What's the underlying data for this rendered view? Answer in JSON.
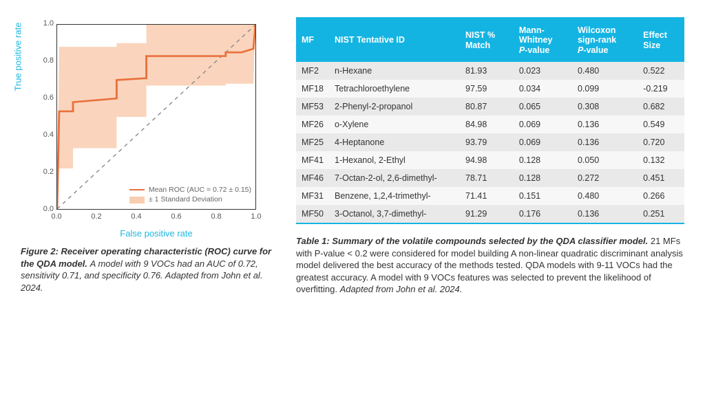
{
  "chart": {
    "type": "line",
    "xlim": [
      0.0,
      1.0
    ],
    "ylim": [
      0.0,
      1.0
    ],
    "xticks": [
      0.0,
      0.2,
      0.4,
      0.6,
      0.8,
      1.0
    ],
    "yticks": [
      0.0,
      0.2,
      0.4,
      0.6,
      0.8,
      1.0
    ],
    "xlabel": "False positive rate",
    "ylabel": "True positive rate",
    "label_color": "#1fb6e0",
    "tick_fontsize": 11,
    "label_fontsize": 13,
    "border_color": "#333333",
    "background_color": "#ffffff",
    "mean_line": {
      "color": "#e8713c",
      "width": 2,
      "points": [
        [
          0.0,
          0.0
        ],
        [
          0.01,
          0.53
        ],
        [
          0.08,
          0.53
        ],
        [
          0.08,
          0.58
        ],
        [
          0.3,
          0.6
        ],
        [
          0.3,
          0.7
        ],
        [
          0.45,
          0.71
        ],
        [
          0.45,
          0.83
        ],
        [
          0.85,
          0.83
        ],
        [
          0.85,
          0.85
        ],
        [
          0.93,
          0.85
        ],
        [
          0.99,
          0.87
        ],
        [
          1.0,
          1.0
        ]
      ]
    },
    "band": {
      "fill": "#f9cdb0",
      "opacity": 0.85,
      "upper": [
        [
          0.0,
          0.0
        ],
        [
          0.01,
          0.88
        ],
        [
          0.3,
          0.88
        ],
        [
          0.3,
          0.9
        ],
        [
          0.45,
          0.9
        ],
        [
          0.45,
          1.0
        ],
        [
          1.0,
          1.0
        ]
      ],
      "lower": [
        [
          1.0,
          1.0
        ],
        [
          0.99,
          0.68
        ],
        [
          0.85,
          0.68
        ],
        [
          0.85,
          0.67
        ],
        [
          0.45,
          0.67
        ],
        [
          0.45,
          0.5
        ],
        [
          0.3,
          0.5
        ],
        [
          0.3,
          0.33
        ],
        [
          0.08,
          0.33
        ],
        [
          0.08,
          0.22
        ],
        [
          0.01,
          0.22
        ],
        [
          0.0,
          0.0
        ]
      ]
    },
    "diagonal": {
      "color": "#888888",
      "dash": "4,4",
      "width": 1
    },
    "legend": {
      "line_label": "Mean ROC (AUC = 0.72 ± 0.15)",
      "band_label": "± 1 Standard Deviation"
    }
  },
  "figure_caption": {
    "title": "Figure 2: Receiver operating characteristic (ROC) curve for the QDA model.",
    "body": "A model with 9 VOCs had an AUC of 0.72, sensitivity 0.71, and specificity 0.76. Adapted from John et al. 2024."
  },
  "table": {
    "header_bg": "#14b4e2",
    "header_fg": "#ffffff",
    "row_odd_bg": "#e9e9e9",
    "row_even_bg": "#f7f7f7",
    "accent_color": "#14b4e2",
    "columns": [
      "MF",
      "NIST Tentative ID",
      "NIST % Match",
      "Mann-Whitney P-value",
      "Wilcoxon sign-rank P-value",
      "Effect Size"
    ],
    "rows": [
      [
        "MF2",
        "n-Hexane",
        "81.93",
        "0.023",
        "0.480",
        "0.522"
      ],
      [
        "MF18",
        "Tetrachloroethylene",
        "97.59",
        "0.034",
        "0.099",
        "-0.219"
      ],
      [
        "MF53",
        "2-Phenyl-2-propanol",
        "80.87",
        "0.065",
        "0.308",
        "0.682"
      ],
      [
        "MF26",
        "o-Xylene",
        "84.98",
        "0.069",
        "0.136",
        "0.549"
      ],
      [
        "MF25",
        "4-Heptanone",
        "93.79",
        "0.069",
        "0.136",
        "0.720"
      ],
      [
        "MF41",
        "1-Hexanol, 2-Ethyl",
        "94.98",
        "0.128",
        "0.050",
        "0.132"
      ],
      [
        "MF46",
        "7-Octan-2-ol, 2,6-dimethyl-",
        "78.71",
        "0.128",
        "0.272",
        "0.451"
      ],
      [
        "MF31",
        "Benzene, 1,2,4-trimethyl-",
        "71.41",
        "0.151",
        "0.480",
        "0.266"
      ],
      [
        "MF50",
        "3-Octanol, 3,7-dimethyl-",
        "91.29",
        "0.176",
        "0.136",
        "0.251"
      ]
    ]
  },
  "table_caption": {
    "title": "Table 1: Summary of the volatile compounds selected by the QDA classifier model.",
    "body": "21 MFs with P-value < 0.2 were considered for model building A non-linear quadratic discriminant analysis model delivered the best accuracy of the methods tested. QDA models with 9-11 VOCs had the greatest accuracy. A model with 9 VOCs features was selected to prevent the likelihood of overfitting. ",
    "attribution": "Adapted from John et al. 2024."
  }
}
